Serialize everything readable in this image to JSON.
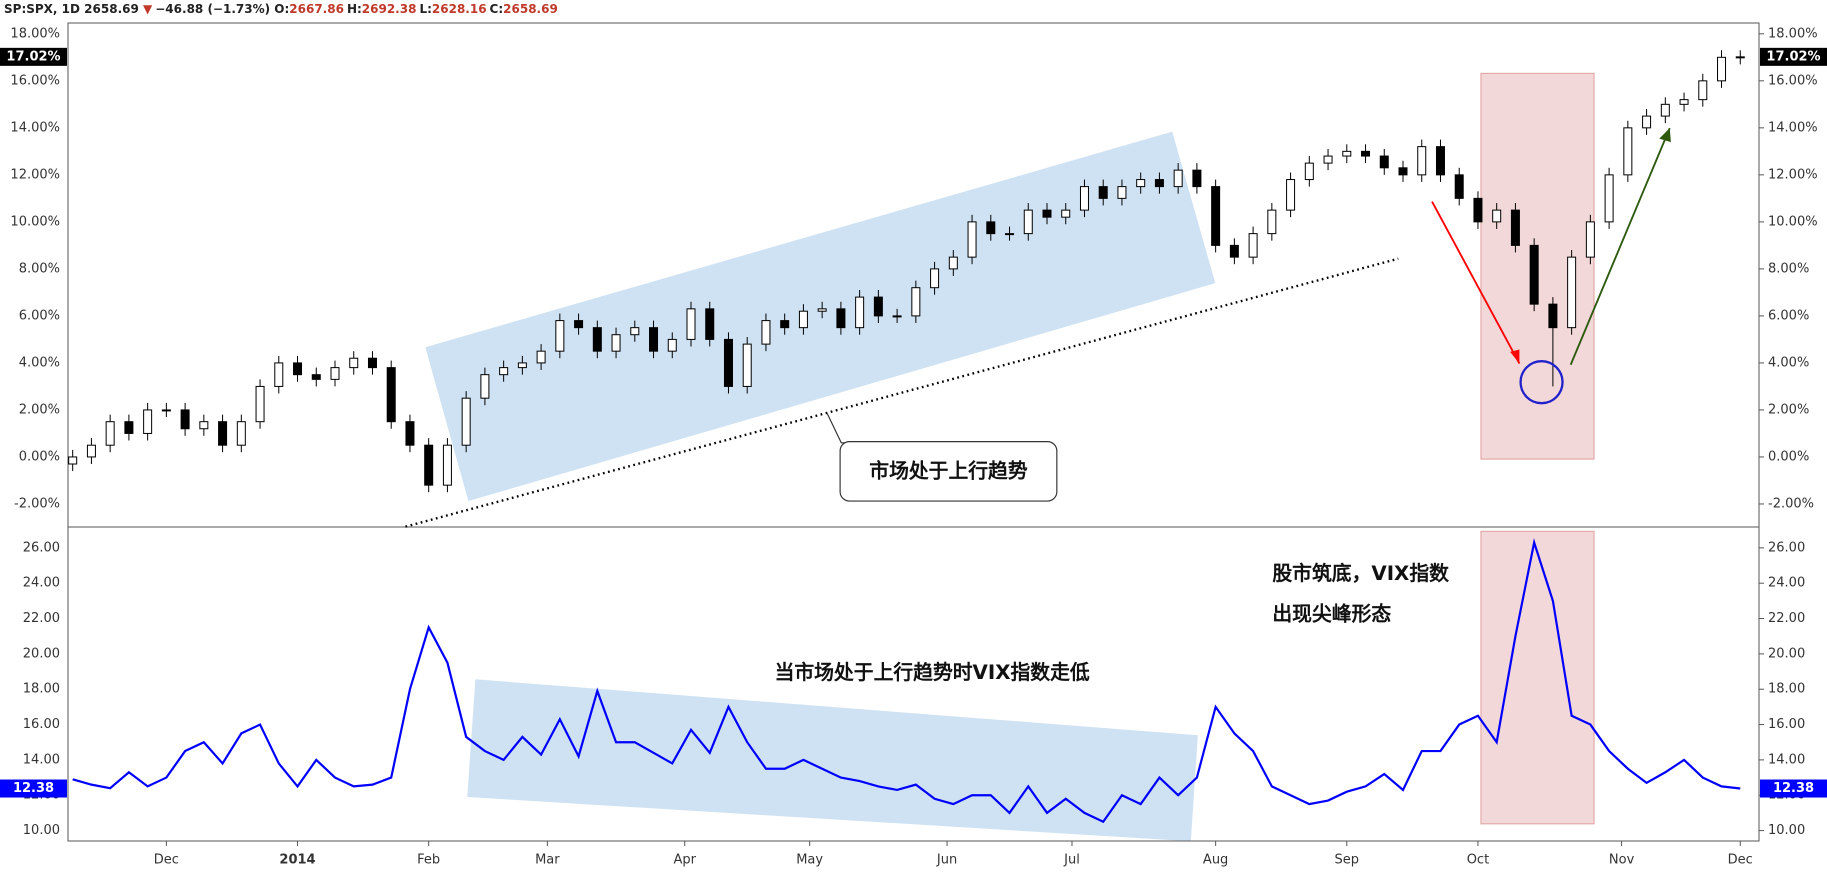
{
  "header": {
    "symbol": "SP:SPX, 1D",
    "last": "2658.69",
    "arrow": "▼",
    "change": "−46.88 (−1.73%)",
    "fields": [
      {
        "label": "O:",
        "value": "2667.86"
      },
      {
        "label": "H:",
        "value": "2692.38"
      },
      {
        "label": "L:",
        "value": "2628.16"
      },
      {
        "label": "C:",
        "value": "2658.69"
      }
    ]
  },
  "chart_data": [
    {
      "type": "candlestick",
      "up_color": "#ffffff",
      "down_color": "#000000",
      "x": [
        0,
        3,
        6,
        9,
        12,
        15,
        18,
        21,
        24,
        27,
        30,
        33,
        36,
        39,
        42,
        45,
        48,
        51,
        54,
        57,
        60,
        63,
        66,
        69,
        72,
        75,
        78,
        81,
        84,
        87,
        90,
        93,
        96,
        99,
        102,
        105,
        108,
        111,
        114,
        117,
        120,
        123,
        126,
        129,
        132,
        135,
        138,
        141,
        144,
        147,
        150,
        153,
        156,
        159,
        162,
        165,
        168,
        171,
        174,
        177,
        180,
        183,
        186,
        189,
        192,
        195,
        198,
        201,
        204,
        207,
        210,
        213,
        216,
        219,
        222,
        225,
        228,
        231,
        234,
        237,
        240,
        243,
        246,
        249,
        252,
        255,
        258,
        261,
        264,
        267
      ],
      "open": [
        -0.3,
        0,
        0.5,
        1.5,
        1.0,
        2.0,
        2.0,
        1.2,
        1.5,
        0.5,
        1.5,
        3.0,
        4.0,
        3.5,
        3.3,
        3.8,
        4.2,
        3.8,
        1.5,
        0.5,
        -1.2,
        0.5,
        2.5,
        3.5,
        3.8,
        4.0,
        4.5,
        5.8,
        5.5,
        4.5,
        5.2,
        5.5,
        4.5,
        5.0,
        6.3,
        5.0,
        3.0,
        4.8,
        5.8,
        5.5,
        6.2,
        6.3,
        5.5,
        6.8,
        6.0,
        6.0,
        7.2,
        8.0,
        8.5,
        10.0,
        9.5,
        9.5,
        10.5,
        10.2,
        10.5,
        11.5,
        11.0,
        11.5,
        11.8,
        11.5,
        12.2,
        11.5,
        9.0,
        8.5,
        9.5,
        10.5,
        11.8,
        12.5,
        12.8,
        13.0,
        12.8,
        12.3,
        12.0,
        13.2,
        12.0,
        11.0,
        10.0,
        10.5,
        9.0,
        6.5,
        5.5,
        8.5,
        10.0,
        12.0,
        14.0,
        14.5,
        15.0,
        15.2,
        16.0,
        17.0
      ],
      "high": [
        0.3,
        0.8,
        1.8,
        1.8,
        2.3,
        2.3,
        2.3,
        1.8,
        1.8,
        1.8,
        3.3,
        4.3,
        4.3,
        3.8,
        4.1,
        4.5,
        4.5,
        4.1,
        1.8,
        0.8,
        0.8,
        2.8,
        3.8,
        4.1,
        4.3,
        4.8,
        6.1,
        6.1,
        5.8,
        5.5,
        5.8,
        5.8,
        5.3,
        6.6,
        6.6,
        5.3,
        5.1,
        6.1,
        6.1,
        6.5,
        6.6,
        6.6,
        7.1,
        7.1,
        6.3,
        7.5,
        8.3,
        8.8,
        10.3,
        10.3,
        9.8,
        10.8,
        10.8,
        10.8,
        11.8,
        11.8,
        11.8,
        12.1,
        12.1,
        12.5,
        12.5,
        11.8,
        9.3,
        9.8,
        10.8,
        12.1,
        12.8,
        13.1,
        13.3,
        13.3,
        13.1,
        12.6,
        13.5,
        13.5,
        12.3,
        11.3,
        10.8,
        10.8,
        9.3,
        6.8,
        8.8,
        10.3,
        12.3,
        14.3,
        14.8,
        15.3,
        15.5,
        16.3,
        17.3,
        17.3
      ],
      "low": [
        -0.6,
        -0.3,
        0.2,
        0.7,
        0.7,
        1.7,
        0.9,
        0.9,
        0.2,
        0.2,
        1.2,
        2.7,
        3.2,
        3.0,
        3.0,
        3.5,
        3.5,
        1.2,
        0.2,
        -1.5,
        -1.5,
        0.2,
        2.2,
        3.2,
        3.5,
        3.7,
        4.2,
        5.2,
        4.2,
        4.2,
        4.9,
        4.2,
        4.2,
        4.7,
        4.7,
        2.7,
        2.7,
        4.5,
        5.2,
        5.2,
        5.9,
        5.2,
        5.2,
        5.7,
        5.7,
        5.7,
        6.9,
        7.7,
        8.2,
        9.2,
        9.2,
        9.2,
        9.9,
        9.9,
        10.2,
        10.7,
        10.7,
        11.2,
        11.2,
        11.2,
        11.2,
        8.7,
        8.2,
        8.2,
        9.2,
        10.2,
        11.5,
        12.2,
        12.5,
        12.5,
        12.0,
        11.7,
        11.7,
        11.7,
        10.7,
        9.7,
        9.7,
        8.7,
        6.2,
        3.0,
        5.2,
        8.2,
        9.7,
        11.7,
        13.7,
        14.2,
        14.7,
        14.9,
        15.7,
        16.7
      ],
      "close": [
        0,
        0.5,
        1.5,
        1.0,
        2.0,
        2.0,
        1.2,
        1.5,
        0.5,
        1.5,
        3.0,
        4.0,
        3.5,
        3.3,
        3.8,
        4.2,
        3.8,
        1.5,
        0.5,
        -1.2,
        0.5,
        2.5,
        3.5,
        3.8,
        4.0,
        4.5,
        5.8,
        5.5,
        4.5,
        5.2,
        5.5,
        4.5,
        5.0,
        6.3,
        5.0,
        3.0,
        4.8,
        5.8,
        5.5,
        6.2,
        6.3,
        5.5,
        6.8,
        6.0,
        6.0,
        7.2,
        8.0,
        8.5,
        10.0,
        9.5,
        9.5,
        10.5,
        10.2,
        10.5,
        11.5,
        11.0,
        11.5,
        11.8,
        11.5,
        12.2,
        11.5,
        9.0,
        8.5,
        9.5,
        10.5,
        11.8,
        12.5,
        12.8,
        13.0,
        12.8,
        12.3,
        12.0,
        13.2,
        12.0,
        11.0,
        10.0,
        10.5,
        9.0,
        6.5,
        5.5,
        8.5,
        10.0,
        12.0,
        14.0,
        14.5,
        15.0,
        15.2,
        16.0,
        17.0,
        17.02
      ],
      "xlim": [
        -0.75,
        270
      ],
      "ylim": [
        -2.98,
        18.46
      ],
      "yticks": [
        {
          "value": -2,
          "label": "-2.00%"
        },
        {
          "value": 0,
          "label": "0.00%"
        },
        {
          "value": 2,
          "label": "2.00%"
        },
        {
          "value": 4,
          "label": "4.00%"
        },
        {
          "value": 6,
          "label": "6.00%"
        },
        {
          "value": 8,
          "label": "8.00%"
        },
        {
          "value": 10,
          "label": "10.00%"
        },
        {
          "value": 12,
          "label": "12.00%"
        },
        {
          "value": 14,
          "label": "14.00%"
        },
        {
          "value": 16,
          "label": "16.00%"
        },
        {
          "value": 18,
          "label": "18.00%"
        }
      ],
      "last_value": {
        "value": 17.02,
        "label": "17.02%"
      },
      "annotations": [
        "市场处于上行趋势"
      ]
    },
    {
      "type": "line",
      "color": "#0000ff",
      "x": [
        0,
        3,
        6,
        9,
        12,
        15,
        18,
        21,
        24,
        27,
        30,
        33,
        36,
        39,
        42,
        45,
        48,
        51,
        54,
        57,
        60,
        63,
        66,
        69,
        72,
        75,
        78,
        81,
        84,
        87,
        90,
        93,
        96,
        99,
        102,
        105,
        108,
        111,
        114,
        117,
        120,
        123,
        126,
        129,
        132,
        135,
        138,
        141,
        144,
        147,
        150,
        153,
        156,
        159,
        162,
        165,
        168,
        171,
        174,
        177,
        180,
        183,
        186,
        189,
        192,
        195,
        198,
        201,
        204,
        207,
        210,
        213,
        216,
        219,
        222,
        225,
        228,
        231,
        234,
        237,
        240,
        243,
        246,
        249,
        252,
        255,
        258,
        261,
        264,
        267
      ],
      "values": [
        12.9,
        12.6,
        12.4,
        13.3,
        12.5,
        13.0,
        14.5,
        15.0,
        13.8,
        15.5,
        16.0,
        13.8,
        12.5,
        14.0,
        13.0,
        12.5,
        12.6,
        13.0,
        18.0,
        21.5,
        19.5,
        15.3,
        14.5,
        14.0,
        15.3,
        14.3,
        16.3,
        14.2,
        17.9,
        15.0,
        15.0,
        14.4,
        13.8,
        15.7,
        14.4,
        17.0,
        15.0,
        13.5,
        13.5,
        14.0,
        13.5,
        13.0,
        12.8,
        12.5,
        12.3,
        12.6,
        11.8,
        11.5,
        12.0,
        12.0,
        11.0,
        12.5,
        11.0,
        11.8,
        11.0,
        10.5,
        12.0,
        11.5,
        13.0,
        12.0,
        13.0,
        17.0,
        15.5,
        14.5,
        12.5,
        12.0,
        11.5,
        11.7,
        12.2,
        12.5,
        13.2,
        12.3,
        14.5,
        14.5,
        16.0,
        16.5,
        15.0,
        21.0,
        26.3,
        23.0,
        16.5,
        16.0,
        14.5,
        13.5,
        12.7,
        13.3,
        14.0,
        13.0,
        12.5,
        12.38
      ],
      "xlim": [
        -0.75,
        270
      ],
      "xticks": [
        {
          "value": 15,
          "label": "Dec"
        },
        {
          "value": 36,
          "label": "2014"
        },
        {
          "value": 57,
          "label": "Feb"
        },
        {
          "value": 76,
          "label": "Mar"
        },
        {
          "value": 98,
          "label": "Apr"
        },
        {
          "value": 118,
          "label": "May"
        },
        {
          "value": 140,
          "label": "Jun"
        },
        {
          "value": 160,
          "label": "Jul"
        },
        {
          "value": 183,
          "label": "Aug"
        },
        {
          "value": 204,
          "label": "Sep"
        },
        {
          "value": 225,
          "label": "Oct"
        },
        {
          "value": 248,
          "label": "Nov"
        },
        {
          "value": 267,
          "label": "Dec"
        }
      ],
      "ylim": [
        9.41,
        27.18
      ],
      "yticks": [
        {
          "value": 10,
          "label": "10.00"
        },
        {
          "value": 12,
          "label": "12.00"
        },
        {
          "value": 14,
          "label": "14.00"
        },
        {
          "value": 16,
          "label": "16.00"
        },
        {
          "value": 18,
          "label": "18.00"
        },
        {
          "value": 20,
          "label": "20.00"
        },
        {
          "value": 22,
          "label": "22.00"
        },
        {
          "value": 24,
          "label": "24.00"
        },
        {
          "value": 26,
          "label": "26.00"
        }
      ],
      "last_value": 12.38,
      "annotations": [
        "当市场处于上行趋势时VIX指数走低",
        "股市筑底，VIX指数",
        "出现尖峰形态"
      ]
    }
  ]
}
